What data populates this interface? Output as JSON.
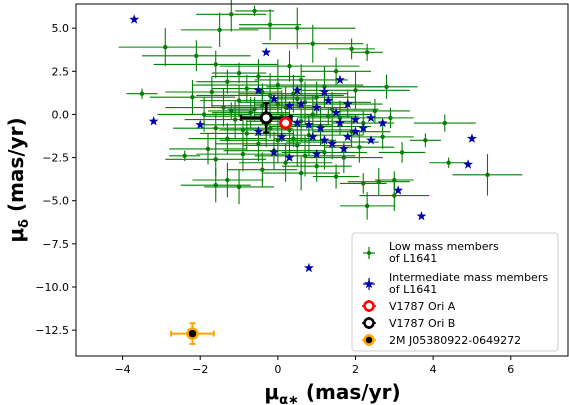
{
  "chart_data": {
    "type": "scatter",
    "title": "",
    "xlabel": {
      "base": "μ",
      "sub": "α∗",
      "unit": " (mas/yr)"
    },
    "ylabel": {
      "base": "μ",
      "sub": "δ",
      "unit": " (mas/yr)"
    },
    "xlim": [
      -5.2,
      7.5
    ],
    "ylim": [
      -14.0,
      6.4
    ],
    "xticks": [
      -4,
      -2,
      0,
      2,
      4,
      6
    ],
    "xtick_labels": [
      "−4",
      "−2",
      "0",
      "2",
      "4",
      "6"
    ],
    "yticks": [
      5.0,
      2.5,
      0.0,
      -2.5,
      -5.0,
      -7.5,
      -10.0,
      -12.5
    ],
    "ytick_labels": [
      "5.0",
      "2.5",
      "0.0",
      "−2.5",
      "−5.0",
      "−7.5",
      "−10.0",
      "−12.5"
    ],
    "legend_position": "lower-right",
    "colors": {
      "low_mass": "#008000",
      "intermediate": "#0000a8",
      "v1787a": "#ff0000",
      "v1787b": "#000000",
      "j0538": "#ffa500"
    },
    "series": [
      {
        "name": "Low mass members\nof L1641",
        "marker": "circle",
        "points": [
          [
            -0.6,
            6.0,
            0.5,
            0.3
          ],
          [
            -1.2,
            5.8,
            0.9,
            1.0
          ],
          [
            -0.2,
            5.2,
            0.8,
            0.9
          ],
          [
            0.5,
            5.0,
            1.5,
            1.2
          ],
          [
            -1.5,
            4.9,
            1.0,
            1.0
          ],
          [
            0.9,
            4.1,
            1.3,
            1.1
          ],
          [
            -2.9,
            3.9,
            1.2,
            1.1
          ],
          [
            1.9,
            3.8,
            0.6,
            0.6
          ],
          [
            2.3,
            3.6,
            0.4,
            0.5
          ],
          [
            -2.1,
            3.4,
            1.4,
            0.9
          ],
          [
            -1.6,
            2.9,
            1.6,
            0.8
          ],
          [
            0.3,
            2.8,
            1.8,
            0.9
          ],
          [
            1.5,
            2.5,
            0.9,
            0.8
          ],
          [
            -1.0,
            2.4,
            0.7,
            0.6
          ],
          [
            -0.5,
            2.2,
            1.2,
            1.0
          ],
          [
            0.6,
            2.0,
            1.2,
            0.9
          ],
          [
            -1.3,
            1.9,
            0.8,
            0.7
          ],
          [
            0.0,
            1.7,
            2.2,
            1.5
          ],
          [
            1.2,
            1.6,
            1.5,
            1.2
          ],
          [
            -0.8,
            1.5,
            0.9,
            0.8
          ],
          [
            2.0,
            1.4,
            1.4,
            1.1
          ],
          [
            -1.7,
            1.3,
            1.2,
            0.9
          ],
          [
            0.4,
            1.2,
            1.4,
            1.1
          ],
          [
            -0.2,
            1.1,
            1.9,
            1.3
          ],
          [
            1.0,
            1.0,
            1.0,
            0.9
          ],
          [
            -2.2,
            1.0,
            1.1,
            1.0
          ],
          [
            -1.0,
            0.8,
            1.0,
            0.9
          ],
          [
            0.7,
            0.7,
            1.7,
            1.2
          ],
          [
            1.8,
            0.6,
            0.9,
            0.8
          ],
          [
            -0.4,
            0.5,
            1.3,
            1.1
          ],
          [
            -1.4,
            0.4,
            1.5,
            1.1
          ],
          [
            0.2,
            0.4,
            1.6,
            1.2
          ],
          [
            1.4,
            0.3,
            1.2,
            1.0
          ],
          [
            2.5,
            0.2,
            0.9,
            0.7
          ],
          [
            -0.7,
            0.1,
            1.0,
            0.9
          ],
          [
            0.9,
            0.0,
            1.5,
            1.1
          ],
          [
            -1.9,
            0.0,
            1.2,
            1.0
          ],
          [
            0.1,
            -0.1,
            2.0,
            1.5
          ],
          [
            1.6,
            -0.2,
            1.1,
            1.0
          ],
          [
            -1.1,
            -0.3,
            1.3,
            1.1
          ],
          [
            0.6,
            -0.4,
            1.4,
            1.2
          ],
          [
            2.2,
            -0.5,
            0.8,
            0.7
          ],
          [
            -0.3,
            -0.6,
            1.6,
            1.3
          ],
          [
            1.1,
            -0.7,
            1.3,
            1.1
          ],
          [
            -1.6,
            -0.8,
            1.1,
            0.9
          ],
          [
            0.3,
            -0.9,
            1.7,
            1.3
          ],
          [
            1.9,
            -1.0,
            1.0,
            0.9
          ],
          [
            -0.8,
            -1.1,
            1.2,
            1.0
          ],
          [
            0.8,
            -1.2,
            1.4,
            1.2
          ],
          [
            2.7,
            -1.3,
            0.8,
            0.7
          ],
          [
            -1.3,
            -1.4,
            1.0,
            0.9
          ],
          [
            0.0,
            -1.5,
            1.5,
            1.3
          ],
          [
            1.4,
            -1.6,
            1.2,
            1.0
          ],
          [
            -0.5,
            -1.7,
            1.1,
            1.0
          ],
          [
            0.5,
            -1.8,
            1.4,
            1.2
          ],
          [
            2.1,
            -1.9,
            0.9,
            0.9
          ],
          [
            -1.8,
            -2.0,
            1.0,
            0.9
          ],
          [
            -0.1,
            -2.1,
            1.3,
            1.1
          ],
          [
            1.2,
            -2.2,
            1.1,
            1.0
          ],
          [
            -0.9,
            -2.3,
            1.2,
            1.0
          ],
          [
            0.7,
            -2.4,
            1.3,
            1.2
          ],
          [
            1.7,
            -2.5,
            1.0,
            0.9
          ],
          [
            -3.5,
            1.2,
            0.4,
            0.3
          ],
          [
            -2.4,
            -2.4,
            0.4,
            0.3
          ],
          [
            -1.6,
            -2.6,
            1.3,
            1.0
          ],
          [
            0.2,
            -2.8,
            1.2,
            1.1
          ],
          [
            1.0,
            -3.0,
            0.9,
            0.9
          ],
          [
            -0.4,
            -3.2,
            0.9,
            1.0
          ],
          [
            0.6,
            -3.4,
            1.0,
            1.0
          ],
          [
            1.5,
            -3.6,
            0.6,
            0.7
          ],
          [
            -1.3,
            -3.8,
            0.9,
            1.0
          ],
          [
            -1.6,
            -4.1,
            0.9,
            1.0
          ],
          [
            -1.0,
            -4.2,
            0.9,
            1.0
          ],
          [
            2.2,
            -4.0,
            0.6,
            0.6
          ],
          [
            2.6,
            -3.9,
            0.8,
            0.8
          ],
          [
            3.0,
            -3.8,
            0.5,
            0.5
          ],
          [
            2.3,
            -5.3,
            0.7,
            0.8
          ],
          [
            3.0,
            -4.7,
            0.9,
            0.9
          ],
          [
            3.8,
            -1.5,
            0.4,
            0.4
          ],
          [
            4.3,
            -0.5,
            0.8,
            0.5
          ],
          [
            4.4,
            -2.8,
            0.5,
            0.3
          ],
          [
            5.4,
            -3.5,
            0.9,
            1.2
          ],
          [
            3.2,
            -2.2,
            0.6,
            0.6
          ],
          [
            2.9,
            -0.2,
            0.6,
            0.6
          ],
          [
            2.8,
            1.6,
            0.8,
            0.7
          ],
          [
            -0.9,
            -0.9,
            0.6,
            0.6
          ],
          [
            0.0,
            0.6,
            0.6,
            0.6
          ],
          [
            0.4,
            -1.4,
            0.5,
            0.5
          ],
          [
            -0.6,
            0.3,
            0.7,
            0.7
          ],
          [
            1.0,
            0.4,
            0.5,
            0.5
          ],
          [
            -0.2,
            -0.8,
            0.6,
            0.6
          ],
          [
            0.8,
            -0.6,
            0.6,
            0.5
          ],
          [
            -1.2,
            0.2,
            0.6,
            0.5
          ],
          [
            1.3,
            -0.1,
            0.6,
            0.5
          ],
          [
            -0.4,
            1.3,
            0.5,
            0.5
          ],
          [
            0.5,
            0.9,
            0.5,
            0.5
          ]
        ]
      },
      {
        "name": "Intermediate mass members\nof L1641",
        "marker": "star",
        "points": [
          [
            -3.7,
            5.5
          ],
          [
            -0.3,
            3.6
          ],
          [
            -0.5,
            1.4
          ],
          [
            0.5,
            1.4
          ],
          [
            1.6,
            2.0
          ],
          [
            1.2,
            1.3
          ],
          [
            1.8,
            0.6
          ],
          [
            -0.1,
            0.9
          ],
          [
            0.6,
            0.6
          ],
          [
            1.0,
            0.4
          ],
          [
            1.3,
            0.8
          ],
          [
            1.5,
            0.1
          ],
          [
            2.4,
            -0.2
          ],
          [
            2.7,
            -0.5
          ],
          [
            0.3,
            -0.2
          ],
          [
            -0.3,
            -0.3
          ],
          [
            0.8,
            -0.6
          ],
          [
            1.1,
            -0.8
          ],
          [
            1.6,
            -0.5
          ],
          [
            2.2,
            -0.8
          ],
          [
            2.0,
            -0.3
          ],
          [
            0.5,
            -0.5
          ],
          [
            -2.0,
            -0.6
          ],
          [
            -3.2,
            -0.4
          ],
          [
            0.1,
            -1.3
          ],
          [
            0.9,
            -1.3
          ],
          [
            1.4,
            -1.7
          ],
          [
            -0.1,
            -2.2
          ],
          [
            0.3,
            -2.5
          ],
          [
            1.0,
            -2.3
          ],
          [
            1.7,
            -2.0
          ],
          [
            2.4,
            -1.5
          ],
          [
            3.1,
            -4.4
          ],
          [
            3.7,
            -5.9
          ],
          [
            5.0,
            -1.4
          ],
          [
            4.9,
            -2.9
          ],
          [
            0.8,
            -8.9
          ],
          [
            2.0,
            -1.0
          ],
          [
            1.2,
            -1.5
          ],
          [
            1.8,
            -1.3
          ],
          [
            -0.5,
            -1.0
          ],
          [
            0.3,
            0.5
          ]
        ]
      },
      {
        "name": "V1787 Ori A",
        "marker": "ring",
        "points": [
          [
            0.2,
            -0.5,
            0.12,
            0.12
          ]
        ]
      },
      {
        "name": "V1787 Ori B",
        "marker": "ring",
        "points": [
          [
            -0.3,
            -0.2,
            0.65,
            0.85
          ]
        ]
      },
      {
        "name": "2M J05380922-0649272",
        "marker": "ring",
        "points": [
          [
            -2.2,
            -12.7,
            0.55,
            0.6
          ]
        ]
      }
    ]
  }
}
